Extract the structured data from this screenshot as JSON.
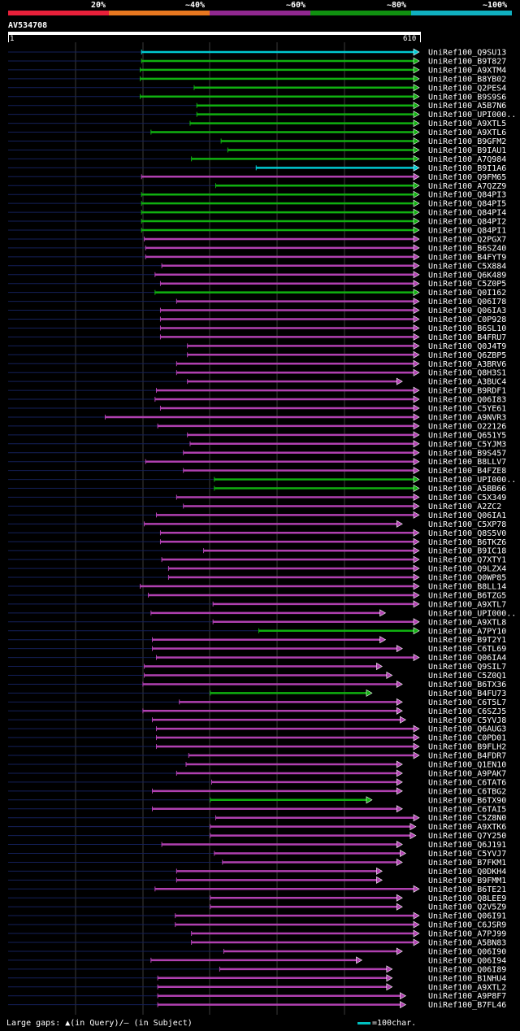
{
  "legend": {
    "labels": [
      "20%",
      "~40%",
      "~60%",
      "~80%",
      "~100%"
    ],
    "colors": [
      "#e8203a",
      "#e87820",
      "#902890",
      "#109010",
      "#10b0c0"
    ]
  },
  "query": {
    "name": "AV534708",
    "start": "1",
    "end": "610"
  },
  "footer": {
    "gaps_text": "Large gaps: ▲(in Query)/– (in Subject)",
    "scale_text": "=100char."
  },
  "chart_data": {
    "type": "alignment",
    "query_length": 610,
    "hits": [
      {
        "name": "UniRef100_Q9SU13",
        "start": 198,
        "end": 610,
        "color": "cyan"
      },
      {
        "name": "UniRef100_B9T827",
        "start": 198,
        "end": 610,
        "color": "green"
      },
      {
        "name": "UniRef100_A9XTM4",
        "start": 196,
        "end": 610,
        "color": "green"
      },
      {
        "name": "UniRef100_B8YB02",
        "start": 196,
        "end": 610,
        "color": "green"
      },
      {
        "name": "UniRef100_Q2PES4",
        "start": 276,
        "end": 610,
        "color": "green"
      },
      {
        "name": "UniRef100_B9S9S6",
        "start": 196,
        "end": 610,
        "color": "green"
      },
      {
        "name": "UniRef100_A5B7N6",
        "start": 280,
        "end": 610,
        "color": "green"
      },
      {
        "name": "UniRef100_UPI000..",
        "start": 280,
        "end": 610,
        "color": "green"
      },
      {
        "name": "UniRef100_A9XTL5",
        "start": 270,
        "end": 610,
        "color": "green"
      },
      {
        "name": "UniRef100_A9XTL6",
        "start": 212,
        "end": 610,
        "color": "green"
      },
      {
        "name": "UniRef100_B9GFM2",
        "start": 316,
        "end": 610,
        "color": "green"
      },
      {
        "name": "UniRef100_B9IAU1",
        "start": 326,
        "end": 610,
        "color": "green"
      },
      {
        "name": "UniRef100_A7Q984",
        "start": 272,
        "end": 610,
        "color": "green"
      },
      {
        "name": "UniRef100_B9I1A6",
        "start": 368,
        "end": 610,
        "color": "cyan"
      },
      {
        "name": "UniRef100_Q9FM65",
        "start": 198,
        "end": 610,
        "color": "magenta"
      },
      {
        "name": "UniRef100_A7QZZ9",
        "start": 308,
        "end": 610,
        "color": "green"
      },
      {
        "name": "UniRef100_Q84PI3",
        "start": 198,
        "end": 610,
        "color": "green"
      },
      {
        "name": "UniRef100_Q84PI5",
        "start": 198,
        "end": 610,
        "color": "green"
      },
      {
        "name": "UniRef100_Q84PI4",
        "start": 198,
        "end": 610,
        "color": "green"
      },
      {
        "name": "UniRef100_Q84PI2",
        "start": 198,
        "end": 610,
        "color": "green"
      },
      {
        "name": "UniRef100_Q84PI1",
        "start": 198,
        "end": 610,
        "color": "green"
      },
      {
        "name": "UniRef100_Q2PGX7",
        "start": 202,
        "end": 610,
        "color": "magenta"
      },
      {
        "name": "UniRef100_B6SZ40",
        "start": 204,
        "end": 610,
        "color": "magenta"
      },
      {
        "name": "UniRef100_B4FYT9",
        "start": 204,
        "end": 610,
        "color": "magenta"
      },
      {
        "name": "UniRef100_C5X884",
        "start": 228,
        "end": 610,
        "color": "magenta"
      },
      {
        "name": "UniRef100_Q6K489",
        "start": 218,
        "end": 610,
        "color": "magenta"
      },
      {
        "name": "UniRef100_C5Z0P5",
        "start": 226,
        "end": 610,
        "color": "magenta"
      },
      {
        "name": "UniRef100_Q0I162",
        "start": 218,
        "end": 610,
        "color": "green"
      },
      {
        "name": "UniRef100_Q06I78",
        "start": 250,
        "end": 610,
        "color": "magenta"
      },
      {
        "name": "UniRef100_Q06IA3",
        "start": 226,
        "end": 610,
        "color": "magenta"
      },
      {
        "name": "UniRef100_C0P928",
        "start": 226,
        "end": 610,
        "color": "magenta"
      },
      {
        "name": "UniRef100_B6SL10",
        "start": 226,
        "end": 610,
        "color": "magenta"
      },
      {
        "name": "UniRef100_B4FRU7",
        "start": 226,
        "end": 610,
        "color": "magenta"
      },
      {
        "name": "UniRef100_Q0J4T9",
        "start": 266,
        "end": 610,
        "color": "magenta"
      },
      {
        "name": "UniRef100_Q6ZBP5",
        "start": 266,
        "end": 610,
        "color": "magenta"
      },
      {
        "name": "UniRef100_A3BRV6",
        "start": 250,
        "end": 610,
        "color": "magenta"
      },
      {
        "name": "UniRef100_Q8H3S1",
        "start": 250,
        "end": 610,
        "color": "magenta"
      },
      {
        "name": "UniRef100_A3BUC4",
        "start": 266,
        "end": 585,
        "color": "magenta"
      },
      {
        "name": "UniRef100_B9RDF1",
        "start": 220,
        "end": 610,
        "color": "magenta"
      },
      {
        "name": "UniRef100_Q06I83",
        "start": 218,
        "end": 610,
        "color": "magenta"
      },
      {
        "name": "UniRef100_C5YE61",
        "start": 226,
        "end": 610,
        "color": "magenta"
      },
      {
        "name": "UniRef100_A9NVR3",
        "start": 144,
        "end": 610,
        "color": "magenta"
      },
      {
        "name": "UniRef100_O22126",
        "start": 222,
        "end": 610,
        "color": "magenta"
      },
      {
        "name": "UniRef100_Q651Y5",
        "start": 266,
        "end": 610,
        "color": "magenta"
      },
      {
        "name": "UniRef100_C5YJM3",
        "start": 270,
        "end": 610,
        "color": "magenta"
      },
      {
        "name": "UniRef100_B9S457",
        "start": 260,
        "end": 610,
        "color": "magenta"
      },
      {
        "name": "UniRef100_B8LLV7",
        "start": 204,
        "end": 610,
        "color": "magenta"
      },
      {
        "name": "UniRef100_B4FZE8",
        "start": 260,
        "end": 610,
        "color": "magenta"
      },
      {
        "name": "UniRef100_UPI000..",
        "start": 306,
        "end": 610,
        "color": "green"
      },
      {
        "name": "UniRef100_A5BB66",
        "start": 306,
        "end": 610,
        "color": "green"
      },
      {
        "name": "UniRef100_C5X349",
        "start": 250,
        "end": 610,
        "color": "magenta"
      },
      {
        "name": "UniRef100_A2ZC2",
        "start": 260,
        "end": 610,
        "color": "magenta"
      },
      {
        "name": "UniRef100_Q06IA1",
        "start": 220,
        "end": 610,
        "color": "magenta"
      },
      {
        "name": "UniRef100_C5XP78",
        "start": 202,
        "end": 585,
        "color": "magenta"
      },
      {
        "name": "UniRef100_Q8S5V0",
        "start": 226,
        "end": 610,
        "color": "magenta"
      },
      {
        "name": "UniRef100_B6TKZ6",
        "start": 226,
        "end": 610,
        "color": "magenta"
      },
      {
        "name": "UniRef100_B9IC18",
        "start": 290,
        "end": 610,
        "color": "magenta"
      },
      {
        "name": "UniRef100_Q7XTY1",
        "start": 228,
        "end": 610,
        "color": "magenta"
      },
      {
        "name": "UniRef100_Q9LZX4",
        "start": 238,
        "end": 610,
        "color": "magenta"
      },
      {
        "name": "UniRef100_Q0WP85",
        "start": 238,
        "end": 610,
        "color": "magenta"
      },
      {
        "name": "UniRef100_B8LL14",
        "start": 196,
        "end": 610,
        "color": "magenta"
      },
      {
        "name": "UniRef100_B6TZG5",
        "start": 208,
        "end": 610,
        "color": "magenta"
      },
      {
        "name": "UniRef100_A9XTL7",
        "start": 304,
        "end": 610,
        "color": "magenta"
      },
      {
        "name": "UniRef100_UPI000..",
        "start": 212,
        "end": 560,
        "color": "magenta"
      },
      {
        "name": "UniRef100_A9XTL8",
        "start": 304,
        "end": 610,
        "color": "magenta"
      },
      {
        "name": "UniRef100_A7PY10",
        "start": 372,
        "end": 610,
        "color": "green"
      },
      {
        "name": "UniRef100_B9T2Y1",
        "start": 214,
        "end": 560,
        "color": "magenta"
      },
      {
        "name": "UniRef100_C6TL69",
        "start": 214,
        "end": 585,
        "color": "magenta"
      },
      {
        "name": "UniRef100_Q06IA4",
        "start": 220,
        "end": 610,
        "color": "magenta"
      },
      {
        "name": "UniRef100_Q9SIL7",
        "start": 202,
        "end": 555,
        "color": "magenta"
      },
      {
        "name": "UniRef100_C5Z0Q1",
        "start": 202,
        "end": 570,
        "color": "magenta"
      },
      {
        "name": "UniRef100_B6TX36",
        "start": 200,
        "end": 585,
        "color": "magenta"
      },
      {
        "name": "UniRef100_B4FU73",
        "start": 300,
        "end": 540,
        "color": "green"
      },
      {
        "name": "UniRef100_C6T5L7",
        "start": 254,
        "end": 585,
        "color": "magenta"
      },
      {
        "name": "UniRef100_C6SZJ5",
        "start": 200,
        "end": 585,
        "color": "magenta"
      },
      {
        "name": "UniRef100_C5YVJ8",
        "start": 214,
        "end": 590,
        "color": "magenta"
      },
      {
        "name": "UniRef100_Q6AUG3",
        "start": 220,
        "end": 610,
        "color": "magenta"
      },
      {
        "name": "UniRef100_C0PD01",
        "start": 220,
        "end": 610,
        "color": "magenta"
      },
      {
        "name": "UniRef100_B9FLH2",
        "start": 220,
        "end": 610,
        "color": "magenta"
      },
      {
        "name": "UniRef100_B4FDR7",
        "start": 268,
        "end": 610,
        "color": "magenta"
      },
      {
        "name": "UniRef100_Q1EN10",
        "start": 264,
        "end": 585,
        "color": "magenta"
      },
      {
        "name": "UniRef100_A9PAK7",
        "start": 250,
        "end": 585,
        "color": "magenta"
      },
      {
        "name": "UniRef100_C6TAT6",
        "start": 302,
        "end": 585,
        "color": "magenta"
      },
      {
        "name": "UniRef100_C6TBG2",
        "start": 214,
        "end": 585,
        "color": "magenta"
      },
      {
        "name": "UniRef100_B6TX90",
        "start": 300,
        "end": 540,
        "color": "green"
      },
      {
        "name": "UniRef100_C6TAI5",
        "start": 214,
        "end": 585,
        "color": "magenta"
      },
      {
        "name": "UniRef100_C5Z8N0",
        "start": 308,
        "end": 610,
        "color": "magenta"
      },
      {
        "name": "UniRef100_A9XTK6",
        "start": 300,
        "end": 605,
        "color": "magenta"
      },
      {
        "name": "UniRef100_Q7Y250",
        "start": 300,
        "end": 605,
        "color": "magenta"
      },
      {
        "name": "UniRef100_Q6J191",
        "start": 228,
        "end": 585,
        "color": "magenta"
      },
      {
        "name": "UniRef100_C5YVJ7",
        "start": 306,
        "end": 590,
        "color": "magenta"
      },
      {
        "name": "UniRef100_B7FKM1",
        "start": 318,
        "end": 585,
        "color": "magenta"
      },
      {
        "name": "UniRef100_Q0DKH4",
        "start": 250,
        "end": 555,
        "color": "magenta"
      },
      {
        "name": "UniRef100_B9FMM1",
        "start": 250,
        "end": 555,
        "color": "magenta"
      },
      {
        "name": "UniRef100_B6TE21",
        "start": 218,
        "end": 610,
        "color": "magenta"
      },
      {
        "name": "UniRef100_Q8LEE9",
        "start": 300,
        "end": 585,
        "color": "magenta"
      },
      {
        "name": "UniRef100_Q2V5Z9",
        "start": 300,
        "end": 585,
        "color": "magenta"
      },
      {
        "name": "UniRef100_Q06I91",
        "start": 248,
        "end": 610,
        "color": "magenta"
      },
      {
        "name": "UniRef100_C6JSR9",
        "start": 248,
        "end": 610,
        "color": "magenta"
      },
      {
        "name": "UniRef100_A7PJ99",
        "start": 272,
        "end": 610,
        "color": "magenta"
      },
      {
        "name": "UniRef100_A5BN83",
        "start": 272,
        "end": 610,
        "color": "magenta"
      },
      {
        "name": "UniRef100_Q06I90",
        "start": 320,
        "end": 585,
        "color": "magenta"
      },
      {
        "name": "UniRef100_Q06I94",
        "start": 212,
        "end": 525,
        "color": "magenta"
      },
      {
        "name": "UniRef100_Q06I89",
        "start": 314,
        "end": 570,
        "color": "magenta"
      },
      {
        "name": "UniRef100_B1NHU4",
        "start": 222,
        "end": 570,
        "color": "magenta"
      },
      {
        "name": "UniRef100_A9XTL2",
        "start": 222,
        "end": 570,
        "color": "magenta"
      },
      {
        "name": "UniRef100_A9P8F7",
        "start": 222,
        "end": 590,
        "color": "magenta"
      },
      {
        "name": "UniRef100_B7FL46",
        "start": 222,
        "end": 590,
        "color": "magenta"
      }
    ]
  }
}
